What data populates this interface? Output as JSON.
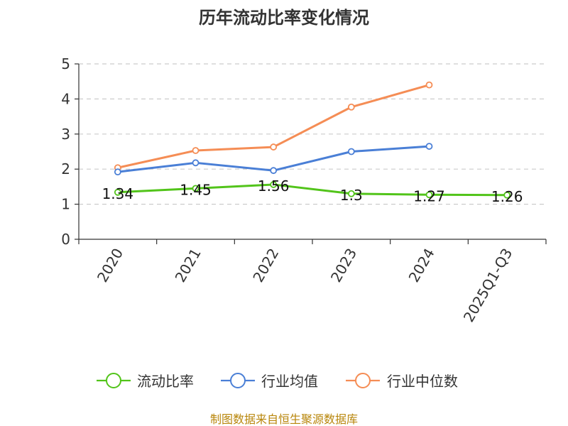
{
  "chart_data": {
    "type": "line",
    "title": "历年流动比率变化情况",
    "categories": [
      "2020",
      "2021",
      "2022",
      "2023",
      "2024",
      "2025Q1-Q3"
    ],
    "ylim": [
      0,
      5
    ],
    "yticks": [
      "0",
      "1",
      "2",
      "3",
      "4",
      "5"
    ],
    "grid": true,
    "legend_position": "bottom",
    "series": [
      {
        "name": "流动比率",
        "color": "#52c41a",
        "values": [
          1.34,
          1.45,
          1.56,
          1.3,
          1.27,
          1.26
        ],
        "labels": [
          "1.34",
          "1.45",
          "1.56",
          "1.3",
          "1.27",
          "1.26"
        ]
      },
      {
        "name": "行业均值",
        "color": "#4a7fd6",
        "values": [
          1.92,
          2.18,
          1.96,
          2.5,
          2.65,
          null
        ]
      },
      {
        "name": "行业中位数",
        "color": "#f58d55",
        "values": [
          2.04,
          2.53,
          2.63,
          3.77,
          4.4,
          null
        ]
      }
    ]
  },
  "source_text": "制图数据来自恒生聚源数据库"
}
